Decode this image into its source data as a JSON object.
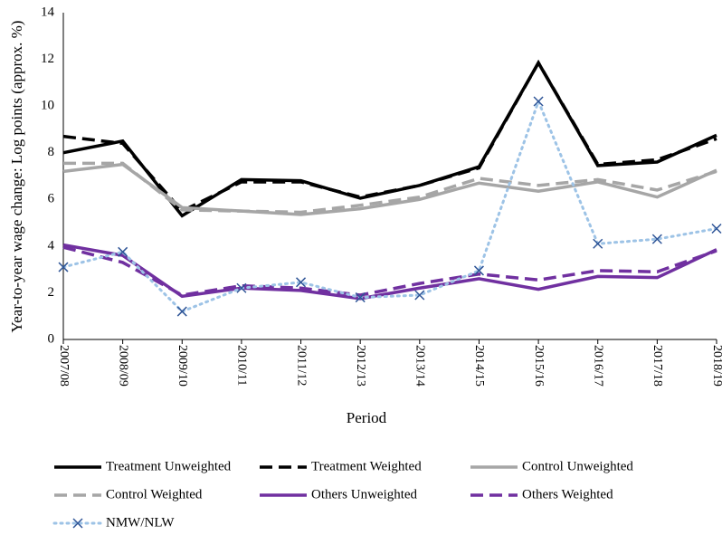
{
  "chart_data": {
    "type": "line",
    "x_label": "Period",
    "y_label": "Year-to-year wage change: Log points (approx. %)",
    "categories": [
      "2007/08",
      "2008/09",
      "2009/10",
      "2010/11",
      "2011/12",
      "2012/13",
      "2013/14",
      "2014/15",
      "2015/16",
      "2016/17",
      "2017/18",
      "2018/19"
    ],
    "ylim": [
      0,
      14
    ],
    "yticks": [
      0,
      2,
      4,
      6,
      8,
      10,
      12,
      14
    ],
    "grid": false,
    "series": [
      {
        "name": "Treatment Unweighted",
        "color": "#000000",
        "line_style": "solid",
        "values": [
          8.0,
          8.5,
          5.3,
          6.85,
          6.8,
          6.05,
          6.6,
          7.4,
          11.85,
          7.45,
          7.6,
          8.75
        ]
      },
      {
        "name": "Treatment Weighted",
        "color": "#000000",
        "line_style": "dashed",
        "values": [
          8.7,
          8.4,
          5.5,
          6.75,
          6.75,
          6.1,
          6.6,
          7.35,
          11.85,
          7.5,
          7.7,
          8.6
        ]
      },
      {
        "name": "Control Unweighted",
        "color": "#a6a6a6",
        "line_style": "solid",
        "values": [
          7.2,
          7.5,
          5.65,
          5.5,
          5.35,
          5.6,
          6.0,
          6.7,
          6.35,
          6.75,
          6.1,
          7.25
        ]
      },
      {
        "name": "Control Weighted",
        "color": "#a6a6a6",
        "line_style": "dashed",
        "values": [
          7.55,
          7.55,
          5.55,
          5.5,
          5.45,
          5.75,
          6.1,
          6.9,
          6.6,
          6.85,
          6.4,
          7.2
        ]
      },
      {
        "name": "Others Unweighted",
        "color": "#7030a0",
        "line_style": "solid",
        "values": [
          4.05,
          3.6,
          1.85,
          2.2,
          2.1,
          1.75,
          2.2,
          2.6,
          2.15,
          2.7,
          2.65,
          3.85
        ]
      },
      {
        "name": "Others Weighted",
        "color": "#7030a0",
        "line_style": "dashed",
        "values": [
          3.95,
          3.3,
          1.9,
          2.3,
          2.2,
          1.9,
          2.4,
          2.8,
          2.55,
          2.95,
          2.9,
          3.8
        ]
      },
      {
        "name": "NMW/NLW",
        "color": "#9dc3e6",
        "marker_color": "#2f5597",
        "line_style": "dotted",
        "marker": "x",
        "values": [
          3.1,
          3.75,
          1.2,
          2.2,
          2.45,
          1.8,
          1.9,
          2.95,
          10.2,
          4.1,
          4.3,
          4.75
        ]
      }
    ]
  }
}
